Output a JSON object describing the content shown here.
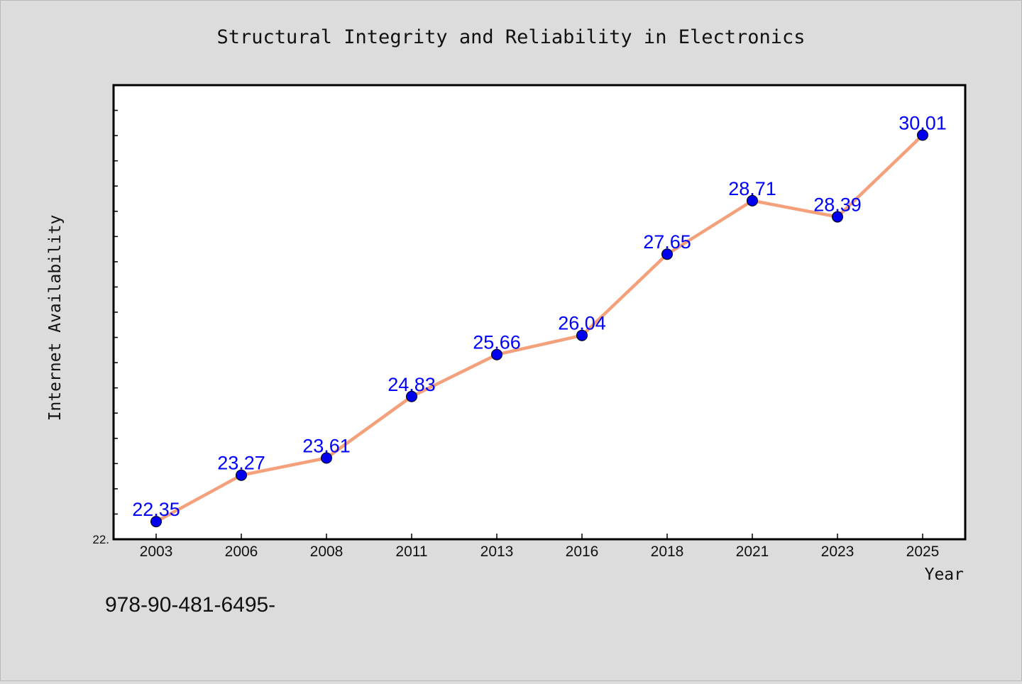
{
  "chart_data": {
    "type": "line",
    "title": "Structural Integrity and Reliability in Electronics",
    "xlabel": "Year",
    "ylabel": "Internet Availability",
    "categories": [
      "2003",
      "2006",
      "2008",
      "2011",
      "2013",
      "2016",
      "2018",
      "2021",
      "2023",
      "2025"
    ],
    "series": [
      {
        "values": [
          22.35,
          23.27,
          23.61,
          24.83,
          25.66,
          26.04,
          27.65,
          28.71,
          28.39,
          30.01
        ]
      }
    ],
    "data_labels": [
      "22.35",
      "23.27",
      "23.61",
      "24.83",
      "25.66",
      "26.04",
      "27.65",
      "28.71",
      "28.39",
      "30.01"
    ],
    "y_tick_label": "22.",
    "ylim": [
      22.0,
      31.0
    ],
    "grid": false,
    "legend": "none",
    "line_color": "#f4a07a",
    "marker_color": "#0000ee",
    "label_color": "#0000ff"
  },
  "footer_text": "978-90-481-6495-"
}
